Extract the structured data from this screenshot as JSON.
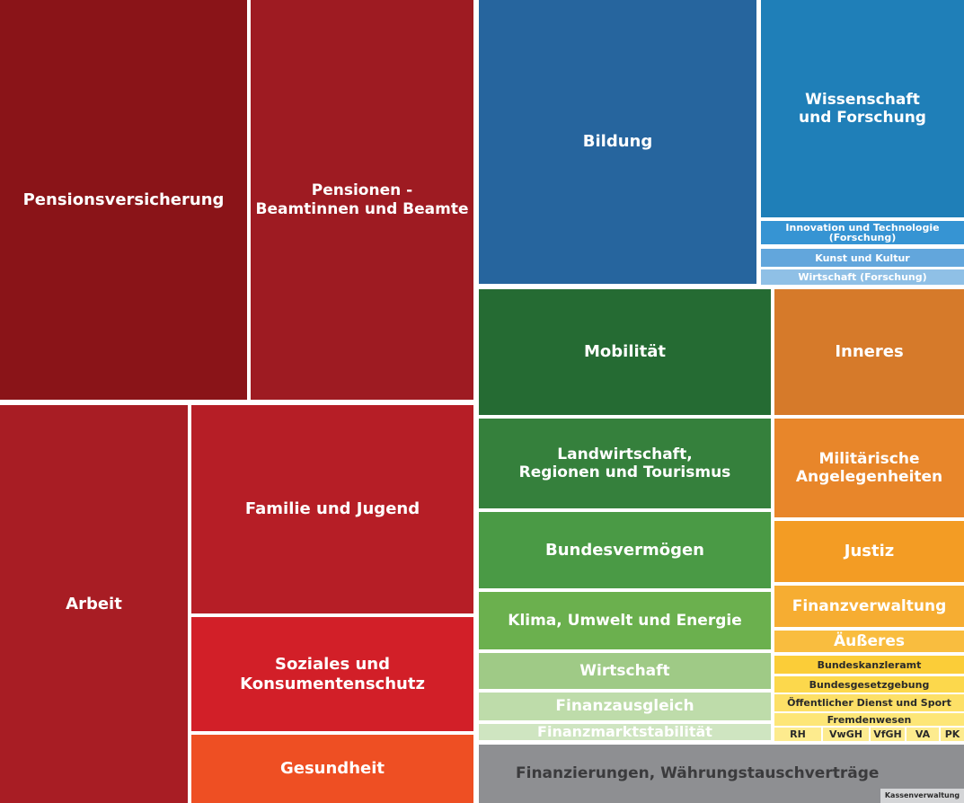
{
  "chart_data": {
    "type": "treemap",
    "title": "",
    "cells": [
      {
        "label": "Pensionsversicherung",
        "color": "#8a1418"
      },
      {
        "label": "Pensionen -\nBeamtinnen und Beamte",
        "color": "#9e1b22"
      },
      {
        "label": "Arbeit",
        "color": "#a81d24"
      },
      {
        "label": "Familie und Jugend",
        "color": "#b61e26"
      },
      {
        "label": "Soziales und\nKonsumentenschutz",
        "color": "#d21f28"
      },
      {
        "label": "Gesundheit",
        "color": "#ee4f23"
      },
      {
        "label": "Bildung",
        "color": "#26659e"
      },
      {
        "label": "Wissenschaft\nund Forschung",
        "color": "#1f7fb8"
      },
      {
        "label": "Innovation und Technologie\n(Forschung)",
        "color": "#3694d3"
      },
      {
        "label": "Kunst und Kultur",
        "color": "#62a6dc"
      },
      {
        "label": "Wirtschaft (Forschung)",
        "color": "#8fc0e6"
      },
      {
        "label": "Mobilität",
        "color": "#256b33"
      },
      {
        "label": "Landwirtschaft,\nRegionen und Tourismus",
        "color": "#35803c"
      },
      {
        "label": "Bundesvermögen",
        "color": "#4a9a45"
      },
      {
        "label": "Klima, Umwelt und Energie",
        "color": "#6bb04e"
      },
      {
        "label": "Wirtschaft",
        "color": "#9fca86"
      },
      {
        "label": "Finanzausgleich",
        "color": "#bedcaa"
      },
      {
        "label": "Finanzmarktstabilität",
        "color": "#cfe5c1"
      },
      {
        "label": "Inneres",
        "color": "#d67a2a"
      },
      {
        "label": "Militärische\nAngelegenheiten",
        "color": "#e8862a"
      },
      {
        "label": "Justiz",
        "color": "#f39c24"
      },
      {
        "label": "Finanzverwaltung",
        "color": "#f6ad32"
      },
      {
        "label": "Äußeres",
        "color": "#f9bd3f"
      },
      {
        "label": "Bundeskanzleramt",
        "color": "#fbcd38"
      },
      {
        "label": "Bundesgesetzgebung",
        "color": "#fcd84c"
      },
      {
        "label": "Öffentlicher Dienst und Sport",
        "color": "#fde067"
      },
      {
        "label": "Fremdenwesen",
        "color": "#fde677"
      },
      {
        "label": "RH",
        "color": "#fdeb8e"
      },
      {
        "label": "VwGH",
        "color": "#fdeb8e"
      },
      {
        "label": "VfGH",
        "color": "#fdeb8e"
      },
      {
        "label": "VA",
        "color": "#fdeb8e"
      },
      {
        "label": "PK",
        "color": "#fdeb8e"
      },
      {
        "label": "Finanzierungen, Währungstauschverträge",
        "color": "#8e8f92"
      },
      {
        "label": "Kassenverwaltung",
        "color": "#d4d5d7"
      }
    ]
  }
}
